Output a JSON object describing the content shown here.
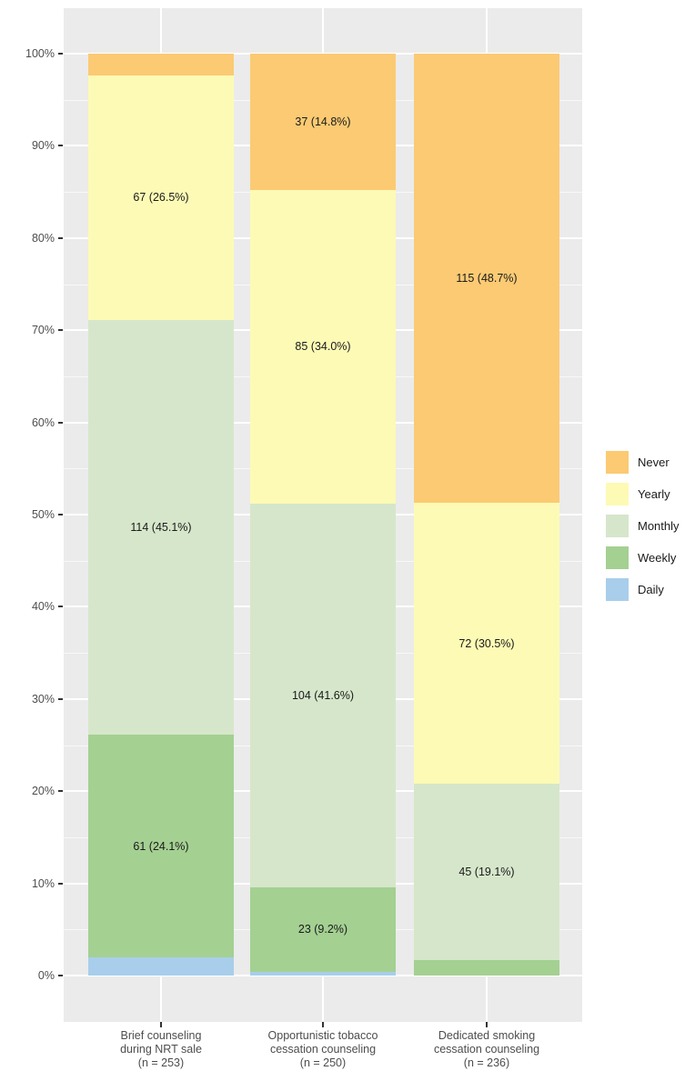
{
  "chart_data": {
    "type": "bar",
    "variant": "100-percent-stacked-vertical",
    "title": "",
    "xlabel": "",
    "ylabel": "",
    "categories": [
      {
        "lines": [
          "Brief counseling",
          "during NRT sale",
          "(n = 253)"
        ],
        "n": 253
      },
      {
        "lines": [
          "Opportunistic tobacco",
          "cessation counseling",
          "(n = 250)"
        ],
        "n": 250
      },
      {
        "lines": [
          "Dedicated smoking",
          "cessation counseling",
          "(n = 236)"
        ],
        "n": 236
      }
    ],
    "series": [
      {
        "name": "Never",
        "color": "#FBCA73",
        "counts": [
          6,
          37,
          115
        ],
        "percents": [
          2.4,
          14.8,
          48.7
        ],
        "bar_labels": [
          "",
          "37 (14.8%)",
          "115 (48.7%)"
        ]
      },
      {
        "name": "Yearly",
        "color": "#FDFAB5",
        "counts": [
          67,
          85,
          72
        ],
        "percents": [
          26.5,
          34.0,
          30.5
        ],
        "bar_labels": [
          "67 (26.5%)",
          "85 (34.0%)",
          "72 (30.5%)"
        ]
      },
      {
        "name": "Monthly",
        "color": "#D6E6CB",
        "counts": [
          114,
          104,
          45
        ],
        "percents": [
          45.1,
          41.6,
          19.1
        ],
        "bar_labels": [
          "114 (45.1%)",
          "104 (41.6%)",
          "45 (19.1%)"
        ]
      },
      {
        "name": "Weekly",
        "color": "#A4D092",
        "counts": [
          61,
          23,
          4
        ],
        "percents": [
          24.1,
          9.2,
          1.7
        ],
        "bar_labels": [
          "61 (24.1%)",
          "23 (9.2%)",
          ""
        ]
      },
      {
        "name": "Daily",
        "color": "#A8CEEB",
        "counts": [
          5,
          1,
          0
        ],
        "percents": [
          2.0,
          0.4,
          0.0
        ],
        "bar_labels": [
          "",
          "",
          ""
        ]
      }
    ],
    "legend": {
      "position": "right",
      "items": [
        "Never",
        "Yearly",
        "Monthly",
        "Weekly",
        "Daily"
      ]
    },
    "y_axis": {
      "ticks": [
        "100%",
        "90%",
        "80%",
        "70%",
        "60%",
        "50%",
        "40%",
        "30%",
        "20%",
        "10%",
        "0%"
      ],
      "min": 0,
      "max": 100,
      "major_step": 10,
      "minor_step": 5
    },
    "grid": {
      "enabled": true,
      "background": "#EBEBEB",
      "major_color": "#FFFFFF",
      "minor_color": "#FFFFFF"
    },
    "colors": {
      "axis_text": "#4D4D4D",
      "tick_mark": "#333333",
      "bar_label_text": "#1A1A1A"
    }
  }
}
